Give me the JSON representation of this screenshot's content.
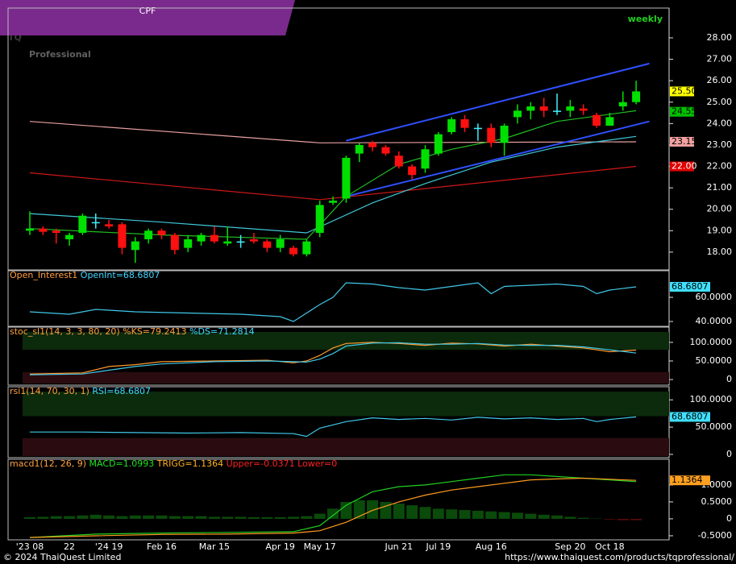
{
  "header": {
    "symbol": "CPF",
    "period": "weekly",
    "watermark_logo": "TQ",
    "watermark_text": "Professional"
  },
  "footer": {
    "copyright": "© 2024 ThaiQuest Limited",
    "url": "https://www.thaiquest.com/products/tqprofessional/"
  },
  "chart_data": [
    {
      "type": "candlestick",
      "categories": [
        "'23 08",
        null,
        null,
        "22",
        null,
        null,
        "'24 19",
        null,
        null,
        null,
        "Feb 16",
        null,
        null,
        null,
        "Mar 15",
        null,
        null,
        null,
        null,
        "Apr 19",
        null,
        null,
        "May 17",
        null,
        null,
        null,
        null,
        null,
        "Jun 21",
        null,
        null,
        "Jul 19",
        null,
        null,
        null,
        "Aug 16",
        null,
        null,
        null,
        null,
        null,
        "Sep 20",
        null,
        null,
        "Oct 18",
        null,
        null
      ],
      "open": [
        19.0,
        19.1,
        19.0,
        18.6,
        18.9,
        19.4,
        19.3,
        19.3,
        18.1,
        18.6,
        19.0,
        18.8,
        18.2,
        18.5,
        18.8,
        18.4,
        18.5,
        18.6,
        18.5,
        18.2,
        18.2,
        17.9,
        18.9,
        20.3,
        20.5,
        22.6,
        23.1,
        22.9,
        22.5,
        22.0,
        21.9,
        22.6,
        23.6,
        24.2,
        23.8,
        23.8,
        23.1,
        24.3,
        24.6,
        24.8,
        24.6,
        24.6,
        24.7,
        24.4,
        23.9,
        24.8,
        25.0
      ],
      "high": [
        19.9,
        19.2,
        19.1,
        18.9,
        19.8,
        19.8,
        19.5,
        19.4,
        18.7,
        19.1,
        19.1,
        18.9,
        18.8,
        18.9,
        19.2,
        19.2,
        18.8,
        18.9,
        18.6,
        18.8,
        18.3,
        18.6,
        20.4,
        20.6,
        22.5,
        23.1,
        23.2,
        23.0,
        22.7,
        22.1,
        23.0,
        23.6,
        24.3,
        24.4,
        24.0,
        24.0,
        24.0,
        24.9,
        25.0,
        25.2,
        25.4,
        25.1,
        24.9,
        24.5,
        24.5,
        25.5,
        26.0
      ],
      "low": [
        18.8,
        18.8,
        18.4,
        18.3,
        18.8,
        19.1,
        19.1,
        17.9,
        17.5,
        18.4,
        18.6,
        17.9,
        18.0,
        18.3,
        18.4,
        18.3,
        18.2,
        18.4,
        18.0,
        18.0,
        17.8,
        17.8,
        18.7,
        20.2,
        20.3,
        22.2,
        22.7,
        22.5,
        21.9,
        21.4,
        21.7,
        22.5,
        23.5,
        23.6,
        23.2,
        22.9,
        22.5,
        24.0,
        24.2,
        24.3,
        24.4,
        24.3,
        24.4,
        23.8,
        23.9,
        24.6,
        24.9
      ],
      "close": [
        19.1,
        18.95,
        18.9,
        18.8,
        19.7,
        19.4,
        19.2,
        18.2,
        18.5,
        19.0,
        18.8,
        18.1,
        18.6,
        18.8,
        18.5,
        18.5,
        18.5,
        18.5,
        18.2,
        18.6,
        17.9,
        18.5,
        20.2,
        20.4,
        22.4,
        23.0,
        22.9,
        22.6,
        22.0,
        21.6,
        22.8,
        23.5,
        24.2,
        23.8,
        23.8,
        23.1,
        23.9,
        24.6,
        24.8,
        24.6,
        24.6,
        24.8,
        24.6,
        23.9,
        24.3,
        25.0,
        25.5
      ],
      "up_color": "#00e000",
      "down_color": "#ff1010",
      "flat_color": "#40f0ff",
      "ylim": [
        17.17,
        29.39
      ],
      "yticks": [
        {
          "value": 18,
          "label": "18.00"
        },
        {
          "value": 19,
          "label": "19.00"
        },
        {
          "value": 20,
          "label": "20.00"
        },
        {
          "value": 21,
          "label": "21.00"
        },
        {
          "value": 22,
          "label": "22.00"
        },
        {
          "value": 23,
          "label": "23.00"
        },
        {
          "value": 24,
          "label": "24.00"
        },
        {
          "value": 25,
          "label": "25.00"
        },
        {
          "value": 26,
          "label": "26.00"
        },
        {
          "value": 27,
          "label": "27.00"
        },
        {
          "value": 28,
          "label": "28.00"
        }
      ],
      "lines": [
        {
          "color": "#e8a0a0",
          "x": [
            0,
            22,
            46
          ],
          "values": [
            24.1,
            23.1,
            23.15
          ]
        },
        {
          "color": "#d01818",
          "x": [
            0,
            22,
            46
          ],
          "values": [
            21.7,
            20.45,
            22.0
          ]
        },
        {
          "color": "#40c8d8",
          "x": [
            0,
            10,
            21,
            26,
            30,
            35,
            40,
            46
          ],
          "values": [
            19.8,
            19.4,
            18.9,
            20.3,
            21.2,
            22.2,
            22.9,
            23.4
          ]
        },
        {
          "color": "#20c020",
          "x": [
            0,
            10,
            21,
            24,
            28,
            32,
            36,
            40,
            46
          ],
          "values": [
            19.1,
            18.8,
            18.6,
            20.6,
            22.1,
            22.8,
            23.3,
            24.1,
            24.6
          ]
        },
        {
          "color": "#3050ff",
          "x": [
            24,
            47
          ],
          "values": [
            23.2,
            26.8
          ]
        },
        {
          "color": "#3050ff",
          "x": [
            24,
            47
          ],
          "values": [
            20.6,
            24.1
          ]
        }
      ],
      "price_labels": [
        {
          "value": 25.5,
          "label": "25.50",
          "color": "#ffff00",
          "text_color": "#000000"
        },
        {
          "value": 24.55,
          "label": "24.55",
          "color": "#00c000",
          "text_color": "#000000"
        },
        {
          "value": 23.15,
          "label": "23.15",
          "color": "#f4a0a0",
          "text_color": "#000000"
        },
        {
          "value": 22.0,
          "label": "22.00",
          "color": "#e00000",
          "text_color": "#ffffff"
        }
      ]
    },
    {
      "type": "line",
      "label_parts": [
        {
          "text": "Open_Interest1",
          "color": "#ffa040"
        },
        {
          "text": "OpenInt=68.6807",
          "color": "#40d8ff"
        }
      ],
      "ylim": [
        36,
        82
      ],
      "yticks": [
        {
          "value": 60,
          "label": "60.0000"
        },
        {
          "value": 40,
          "label": "40.0000"
        }
      ],
      "series": [
        {
          "color": "#40c8e8",
          "x": [
            0,
            3,
            5,
            8,
            12,
            16,
            19,
            20,
            21,
            22,
            23,
            24,
            26,
            28,
            30,
            32,
            34,
            35,
            36,
            38,
            40,
            42,
            43,
            44,
            46
          ],
          "values": [
            48,
            46,
            50,
            48,
            47,
            46,
            44,
            40,
            47,
            54,
            60,
            72,
            71,
            68,
            66,
            69,
            72,
            63,
            69,
            70,
            71,
            69,
            63,
            66,
            68.6807
          ]
        }
      ],
      "last_label": {
        "value": 68.6807,
        "label": "68.6807",
        "color": "#40e0ff"
      }
    },
    {
      "type": "line",
      "label_parts": [
        {
          "text": "stoc_sl1(14, 3, 3, 80, 20)",
          "color": "#ffa040"
        },
        {
          "text": "%KS=79.2413",
          "color": "#ffa040"
        },
        {
          "text": "%DS=71.2814",
          "color": "#40d8ff"
        }
      ],
      "ylim": [
        -15,
        141
      ],
      "yticks": [
        {
          "value": 100,
          "label": "100.0000"
        },
        {
          "value": 50,
          "label": "50.0000"
        },
        0
      ],
      "bands": [
        80,
        20
      ],
      "series": [
        {
          "color": "#ff9a30",
          "x": [
            0,
            4,
            6,
            8,
            10,
            14,
            18,
            20,
            21,
            22,
            23,
            24,
            26,
            28,
            30,
            32,
            34,
            36,
            38,
            40,
            42,
            44,
            46
          ],
          "values": [
            15,
            18,
            35,
            40,
            48,
            50,
            52,
            45,
            50,
            65,
            85,
            97,
            100,
            97,
            92,
            98,
            96,
            90,
            95,
            90,
            85,
            75,
            79.2413
          ]
        },
        {
          "color": "#40c8e8",
          "x": [
            0,
            4,
            6,
            8,
            10,
            14,
            18,
            20,
            21,
            22,
            23,
            24,
            26,
            28,
            30,
            32,
            34,
            36,
            38,
            40,
            42,
            44,
            46
          ],
          "values": [
            13,
            15,
            25,
            35,
            42,
            48,
            50,
            48,
            47,
            55,
            70,
            90,
            98,
            99,
            95,
            95,
            97,
            93,
            92,
            92,
            88,
            80,
            71.2814
          ]
        }
      ]
    },
    {
      "type": "line",
      "label_parts": [
        {
          "text": "rsi1(14, 70, 30, 1)",
          "color": "#ffa040"
        },
        {
          "text": "RSI=68.6807",
          "color": "#40d8ff"
        }
      ],
      "ylim": [
        -6,
        124
      ],
      "yticks": [
        {
          "value": 100,
          "label": "100.0000"
        },
        {
          "value": 50,
          "label": "50.0000"
        },
        0
      ],
      "bands": [
        70,
        30
      ],
      "series": [
        {
          "color": "#40c8e8",
          "x": [
            0,
            4,
            8,
            12,
            16,
            20,
            21,
            22,
            24,
            26,
            28,
            30,
            32,
            34,
            36,
            38,
            40,
            42,
            43,
            44,
            46
          ],
          "values": [
            41,
            41,
            40,
            39,
            40,
            38,
            33,
            48,
            60,
            67,
            64,
            66,
            63,
            68,
            65,
            67,
            64,
            66,
            60,
            64,
            68.6807
          ]
        }
      ],
      "last_label": {
        "value": 68.6807,
        "label": "68.6807",
        "color": "#40e0ff"
      }
    },
    {
      "type": "line",
      "label_parts": [
        {
          "text": "macd1(12, 26, 9)",
          "color": "#ffa040"
        },
        {
          "text": "MACD=1.0993",
          "color": "#20e020"
        },
        {
          "text": "TRIGG=1.1364",
          "color": "#ffb020"
        },
        {
          "text": "Upper=-0.0371",
          "color": "#ff2020"
        },
        {
          "text": "Lower=0",
          "color": "#ff2020"
        }
      ],
      "ylim": [
        -0.62,
        1.76
      ],
      "yticks": [
        {
          "value": 1,
          "label": "1.0000"
        },
        {
          "value": 0.5,
          "label": "0.5000"
        },
        0,
        {
          "value": -0.5,
          "label": "-0.5000"
        }
      ],
      "histogram": {
        "up_color": "#0a4a0a",
        "down_color": "#5a0a0a",
        "values": [
          0.05,
          0.06,
          0.08,
          0.08,
          0.1,
          0.12,
          0.1,
          0.08,
          0.1,
          0.1,
          0.1,
          0.08,
          0.08,
          0.08,
          0.06,
          0.06,
          0.06,
          0.05,
          0.05,
          0.05,
          0.06,
          0.08,
          0.15,
          0.3,
          0.5,
          0.55,
          0.55,
          0.5,
          0.45,
          0.4,
          0.35,
          0.3,
          0.28,
          0.26,
          0.24,
          0.22,
          0.2,
          0.18,
          0.15,
          0.12,
          0.1,
          0.06,
          0.03,
          0.01,
          -0.02,
          -0.04,
          -0.04
        ]
      },
      "series": [
        {
          "color": "#20d020",
          "x": [
            0,
            5,
            10,
            15,
            20,
            22,
            24,
            26,
            28,
            30,
            32,
            34,
            36,
            38,
            40,
            42,
            44,
            46
          ],
          "values": [
            -0.55,
            -0.45,
            -0.42,
            -0.4,
            -0.38,
            -0.2,
            0.4,
            0.8,
            0.95,
            1.0,
            1.1,
            1.2,
            1.3,
            1.3,
            1.25,
            1.2,
            1.15,
            1.0993
          ]
        },
        {
          "color": "#ff9a20",
          "x": [
            0,
            5,
            10,
            15,
            20,
            22,
            24,
            26,
            28,
            30,
            32,
            34,
            36,
            38,
            40,
            42,
            44,
            46
          ],
          "values": [
            -0.55,
            -0.5,
            -0.46,
            -0.45,
            -0.42,
            -0.35,
            -0.1,
            0.25,
            0.5,
            0.7,
            0.85,
            0.95,
            1.05,
            1.15,
            1.18,
            1.2,
            1.17,
            1.1364
          ]
        }
      ],
      "last_label": {
        "value": 1.1364,
        "label": "1.1364",
        "color": "#ffa020"
      }
    }
  ]
}
